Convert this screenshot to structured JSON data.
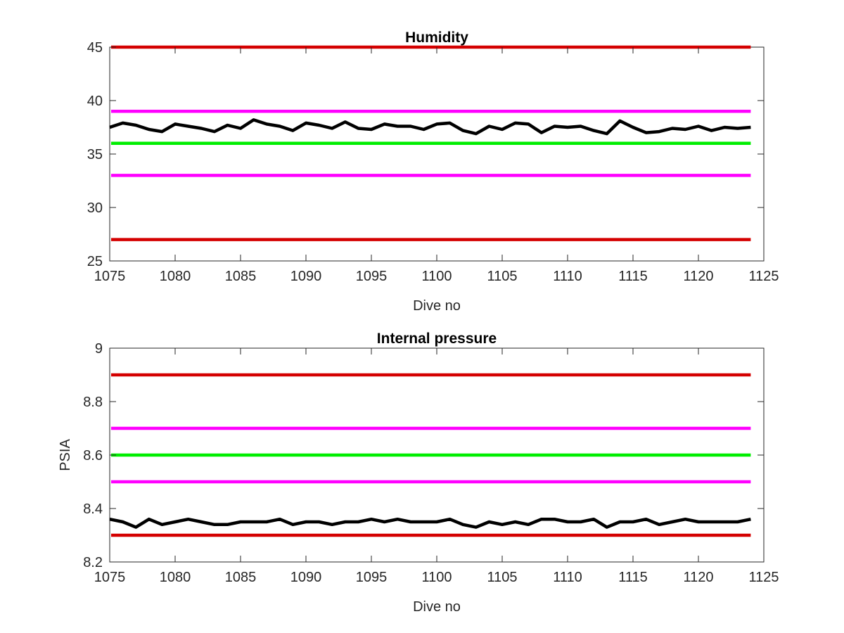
{
  "chart_data": [
    {
      "type": "line",
      "title": "Humidity",
      "xlabel": "Dive no",
      "ylabel": "",
      "xlim": [
        1075,
        1125
      ],
      "ylim": [
        25,
        45
      ],
      "xticks": [
        1075,
        1080,
        1085,
        1090,
        1095,
        1100,
        1105,
        1110,
        1115,
        1120,
        1125
      ],
      "yticks": [
        25,
        30,
        35,
        40,
        45
      ],
      "grid": false,
      "reference_lines": [
        {
          "value": 45,
          "color": "#d40000"
        },
        {
          "value": 39,
          "color": "#ff00ff"
        },
        {
          "value": 36,
          "color": "#00ee00"
        },
        {
          "value": 33,
          "color": "#ff00ff"
        },
        {
          "value": 27,
          "color": "#d40000"
        }
      ],
      "series": [
        {
          "color": "#000000",
          "x": [
            1075,
            1076,
            1077,
            1078,
            1079,
            1080,
            1081,
            1082,
            1083,
            1084,
            1085,
            1086,
            1087,
            1088,
            1089,
            1090,
            1091,
            1092,
            1093,
            1094,
            1095,
            1096,
            1097,
            1098,
            1099,
            1100,
            1101,
            1102,
            1103,
            1104,
            1105,
            1106,
            1107,
            1108,
            1109,
            1110,
            1111,
            1112,
            1113,
            1114,
            1115,
            1116,
            1117,
            1118,
            1119,
            1120,
            1121,
            1122,
            1123,
            1124
          ],
          "y": [
            37.5,
            37.9,
            37.7,
            37.3,
            37.1,
            37.8,
            37.6,
            37.4,
            37.1,
            37.7,
            37.4,
            38.2,
            37.8,
            37.6,
            37.2,
            37.9,
            37.7,
            37.4,
            38.0,
            37.4,
            37.3,
            37.8,
            37.6,
            37.6,
            37.3,
            37.8,
            37.9,
            37.2,
            36.9,
            37.6,
            37.3,
            37.9,
            37.8,
            37.0,
            37.6,
            37.5,
            37.6,
            37.2,
            36.9,
            38.1,
            37.5,
            37.0,
            37.1,
            37.4,
            37.3,
            37.6,
            37.2,
            37.5,
            37.4,
            37.5
          ]
        }
      ]
    },
    {
      "type": "line",
      "title": "Internal pressure",
      "xlabel": "Dive no",
      "ylabel": "PSIA",
      "xlim": [
        1075,
        1125
      ],
      "ylim": [
        8.2,
        9.0
      ],
      "xticks": [
        1075,
        1080,
        1085,
        1090,
        1095,
        1100,
        1105,
        1110,
        1115,
        1120,
        1125
      ],
      "yticks": [
        8.2,
        8.4,
        8.6,
        8.8,
        9
      ],
      "ytick_labels": [
        "8.2",
        "8.4",
        "8.6",
        "8.8",
        "9"
      ],
      "grid": false,
      "reference_lines": [
        {
          "value": 8.9,
          "color": "#d40000"
        },
        {
          "value": 8.7,
          "color": "#ff00ff"
        },
        {
          "value": 8.6,
          "color": "#00ee00"
        },
        {
          "value": 8.5,
          "color": "#ff00ff"
        },
        {
          "value": 8.3,
          "color": "#d40000"
        }
      ],
      "series": [
        {
          "color": "#000000",
          "x": [
            1075,
            1076,
            1077,
            1078,
            1079,
            1080,
            1081,
            1082,
            1083,
            1084,
            1085,
            1086,
            1087,
            1088,
            1089,
            1090,
            1091,
            1092,
            1093,
            1094,
            1095,
            1096,
            1097,
            1098,
            1099,
            1100,
            1101,
            1102,
            1103,
            1104,
            1105,
            1106,
            1107,
            1108,
            1109,
            1110,
            1111,
            1112,
            1113,
            1114,
            1115,
            1116,
            1117,
            1118,
            1119,
            1120,
            1121,
            1122,
            1123,
            1124
          ],
          "y": [
            8.36,
            8.35,
            8.33,
            8.36,
            8.34,
            8.35,
            8.36,
            8.35,
            8.34,
            8.34,
            8.35,
            8.35,
            8.35,
            8.36,
            8.34,
            8.35,
            8.35,
            8.34,
            8.35,
            8.35,
            8.36,
            8.35,
            8.36,
            8.35,
            8.35,
            8.35,
            8.36,
            8.34,
            8.33,
            8.35,
            8.34,
            8.35,
            8.34,
            8.36,
            8.36,
            8.35,
            8.35,
            8.36,
            8.33,
            8.35,
            8.35,
            8.36,
            8.34,
            8.35,
            8.36,
            8.35,
            8.35,
            8.35,
            8.35,
            8.36
          ]
        }
      ]
    }
  ]
}
